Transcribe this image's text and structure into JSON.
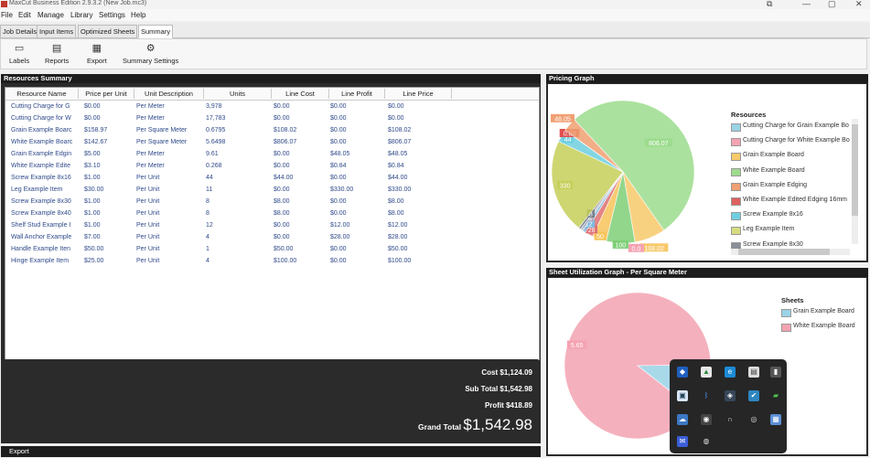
{
  "window": {
    "title": "MaxCut Business Edition 2.9.3.2 (New Job.mc3)",
    "controls": {
      "restore": "⧉",
      "minimize": "—",
      "maximize": "▢",
      "close": "✕"
    }
  },
  "menu": [
    "File",
    "Edit",
    "Manage",
    "Library",
    "Settings",
    "Help"
  ],
  "tabs": [
    "Job Details",
    "Input Items",
    "Optimized Sheets",
    "Summary"
  ],
  "toolbar": {
    "labels": "Labels",
    "reports": "Reports",
    "export": "Export",
    "summary_settings": "Summary Settings"
  },
  "resources": {
    "header": "Resources Summary",
    "columns": [
      "Resource Name",
      "Price per Unit",
      "Unit Description",
      "Units",
      "Line Cost",
      "Line Profit",
      "Line Price"
    ],
    "rows": [
      [
        "Cutting Charge for G",
        "$0.00",
        "Per Meter",
        "3,978",
        "$0.00",
        "$0.00",
        "$0.00"
      ],
      [
        "Cutting Charge for W",
        "$0.00",
        "Per Meter",
        "17,783",
        "$0.00",
        "$0.00",
        "$0.00"
      ],
      [
        "Grain Example Boarc",
        "$158.97",
        "Per Square Meter",
        "0.6795",
        "$108.02",
        "$0.00",
        "$108.02"
      ],
      [
        "White Example Boarc",
        "$142.67",
        "Per Square Meter",
        "5.6498",
        "$806.07",
        "$0.00",
        "$806.07"
      ],
      [
        "Grain Example Edgin",
        "$5.00",
        "Per Meter",
        "9.61",
        "$0.00",
        "$48.05",
        "$48.05"
      ],
      [
        "White Example Edite",
        "$3.10",
        "Per Meter",
        "0.268",
        "$0.00",
        "$0.84",
        "$0.84"
      ],
      [
        "Screw Example 8x16",
        "$1.00",
        "Per Unit",
        "44",
        "$44.00",
        "$0.00",
        "$44.00"
      ],
      [
        "Leg Example Item",
        "$30.00",
        "Per Unit",
        "11",
        "$0.00",
        "$330.00",
        "$330.00"
      ],
      [
        "Screw Example 8x30",
        "$1.00",
        "Per Unit",
        "8",
        "$8.00",
        "$0.00",
        "$8.00"
      ],
      [
        "Screw Example 8x40",
        "$1.00",
        "Per Unit",
        "8",
        "$8.00",
        "$0.00",
        "$8.00"
      ],
      [
        "Shelf Stud Example I",
        "$1.00",
        "Per Unit",
        "12",
        "$0.00",
        "$12.00",
        "$12.00"
      ],
      [
        "Wall Anchor Example",
        "$7.00",
        "Per Unit",
        "4",
        "$0.00",
        "$28.00",
        "$28.00"
      ],
      [
        "Handle Example Iten",
        "$50.00",
        "Per Unit",
        "1",
        "$50.00",
        "$0.00",
        "$50.00"
      ],
      [
        "Hinge Example Item",
        "$25.00",
        "Per Unit",
        "4",
        "$100.00",
        "$0.00",
        "$100.00"
      ]
    ]
  },
  "totals": {
    "cost_label": "Cost",
    "cost": "$1,124.09",
    "subtotal_label": "Sub Total",
    "subtotal": "$1,542.98",
    "profit_label": "Profit",
    "profit": "$418.89",
    "grand_label": "Grand Total",
    "grand": "$1,542.98"
  },
  "export_bar": "Export",
  "pricing_graph": {
    "header": "Pricing Graph",
    "legend_title": "Resources",
    "legend": [
      {
        "name": "Cutting Charge for Grain Example Bo",
        "color": "#9ad3e6"
      },
      {
        "name": "Cutting Charge for White Example Bo",
        "color": "#f4a3b2"
      },
      {
        "name": "Grain Example Board",
        "color": "#f7c96b"
      },
      {
        "name": "White Example Board",
        "color": "#9ddc8e"
      },
      {
        "name": "Grain Example Edging",
        "color": "#f0a073"
      },
      {
        "name": "White Example Edited Edging 16mm",
        "color": "#e06060"
      },
      {
        "name": "Screw Example 8x16",
        "color": "#6fcfe0"
      },
      {
        "name": "Leg Example Item",
        "color": "#d7dc80"
      },
      {
        "name": "Screw Example 8x30",
        "color": "#8a8f9a"
      }
    ]
  },
  "util_graph": {
    "header": "Sheet Utilization Graph - Per Square Meter",
    "legend_title": "Sheets",
    "legend": [
      {
        "name": "Grain Example Board",
        "color": "#9ad3e6"
      },
      {
        "name": "White Example Board",
        "color": "#f4a3b2"
      }
    ]
  },
  "chart_data": [
    {
      "type": "pie",
      "title": "Pricing Graph",
      "slices": [
        {
          "label": "806.07",
          "value": 806.07,
          "color": "#9ddc8e"
        },
        {
          "label": "108.02",
          "value": 108.02,
          "color": "#f7c96b"
        },
        {
          "label": "0.0",
          "value": 0.0,
          "color": "#f4a3b2"
        },
        {
          "label": "100",
          "value": 100,
          "color": "#7fcf78"
        },
        {
          "label": "50",
          "value": 50,
          "color": "#f6c45a"
        },
        {
          "label": "28",
          "value": 28,
          "color": "#e07070"
        },
        {
          "label": "12",
          "value": 12,
          "color": "#7fb8e0"
        },
        {
          "label": "8",
          "value": 8,
          "color": "#b0b0c0"
        },
        {
          "label": "8",
          "value": 8,
          "color": "#7a7f8a"
        },
        {
          "label": "330",
          "value": 330,
          "color": "#c6cf5a"
        },
        {
          "label": "44",
          "value": 44,
          "color": "#6fcfe0"
        },
        {
          "label": "0.84",
          "value": 0.84,
          "color": "#e05050"
        },
        {
          "label": "48.05",
          "value": 48.05,
          "color": "#f0a073"
        }
      ]
    },
    {
      "type": "pie",
      "title": "Sheet Utilization Graph - Per Square Meter",
      "slices": [
        {
          "label": "5.65",
          "value": 5.65,
          "color": "#f4a3b2"
        },
        {
          "label": "0.68",
          "value": 0.68,
          "color": "#9ad3e6"
        }
      ]
    }
  ]
}
